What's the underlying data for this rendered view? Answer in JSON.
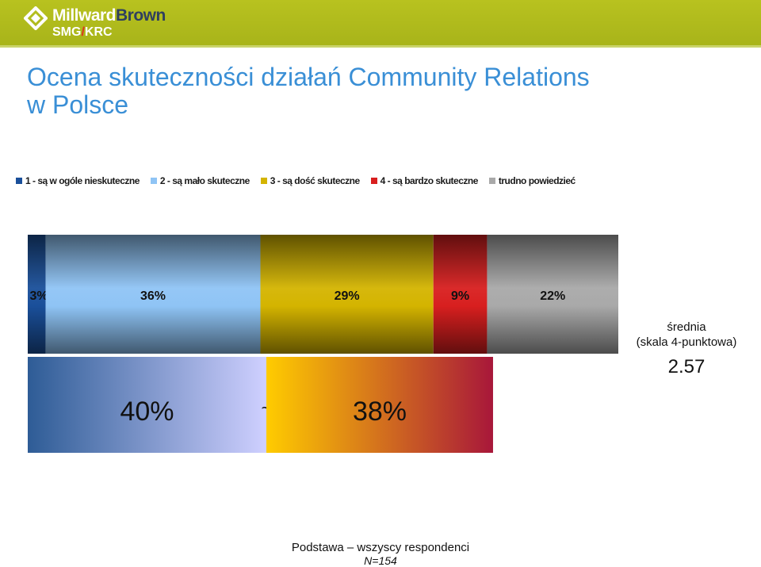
{
  "header": {
    "logo_name_part1": "Millward",
    "logo_name_part2": "Brown",
    "logo_sub_part1": "SMG",
    "logo_sub_slash": "/",
    "logo_sub_part2": "KRC",
    "bar_color": "#b3bd1e"
  },
  "title_line1": "Ocena skuteczności działań Community Relations",
  "title_line2": "w Polsce",
  "chart_data": {
    "type": "bar",
    "orientation": "horizontal-stacked",
    "unit": "%",
    "legend_position": "top",
    "series": [
      {
        "name": "1 - są w ogóle nieskuteczne",
        "value": 3,
        "label": "3%",
        "color": "#1a4f9a"
      },
      {
        "name": "2 - są mało skuteczne",
        "value": 36,
        "label": "36%",
        "color": "#8fc4f5"
      },
      {
        "name": "3 - są dość skuteczne",
        "value": 29,
        "label": "29%",
        "color": "#d4b400"
      },
      {
        "name": "4 - są bardzo skuteczne",
        "value": 9,
        "label": "9%",
        "color": "#d81f1f"
      },
      {
        "name": "trudno powiedzieć",
        "value": 22,
        "label": "22%",
        "color": "#a9a9a9"
      }
    ],
    "groups": [
      {
        "value": 40,
        "label": "40%",
        "color_from": "#2e5c96",
        "color_to": "#cfd0ff"
      },
      {
        "value": 38,
        "label": "38%",
        "color_from": "#ffcc00",
        "color_to": "#a8173a"
      }
    ],
    "group_separator": "~"
  },
  "average": {
    "label": "średnia",
    "scale": "(skala 4-punktowa)",
    "value": "2.57"
  },
  "footer": {
    "base": "Podstawa – wszyscy respondenci",
    "n": "N=154"
  }
}
